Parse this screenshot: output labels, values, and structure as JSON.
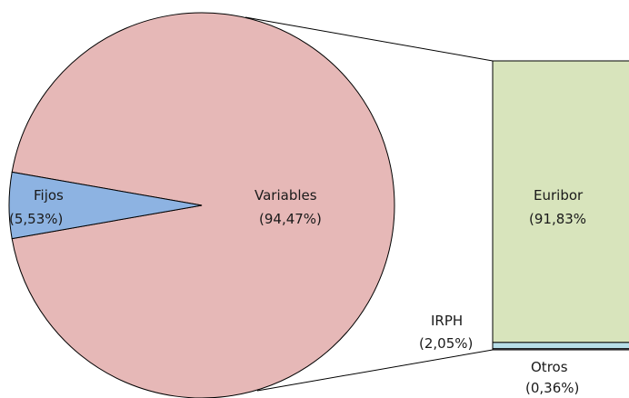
{
  "chart_data": {
    "type": "pie",
    "pie": {
      "slices": [
        {
          "name": "Fijos",
          "value": 5.53,
          "label": "(5,53%)",
          "color": "#8db3e2"
        },
        {
          "name": "Variables",
          "value": 94.47,
          "label": "(94,47%)",
          "color": "#e6b8b7"
        }
      ]
    },
    "bar": {
      "parent": "Variables",
      "segments": [
        {
          "name": "Euribor",
          "value": 91.83,
          "label": "(91,83%",
          "color": "#d8e4bc"
        },
        {
          "name": "IRPH",
          "value": 2.05,
          "label": "(2,05%)",
          "color": "#b7dee8"
        },
        {
          "name": "Otros",
          "value": 0.36,
          "label": "(0,36%)",
          "color": "#ccc0da"
        }
      ]
    },
    "legend": "none",
    "grid": false
  }
}
